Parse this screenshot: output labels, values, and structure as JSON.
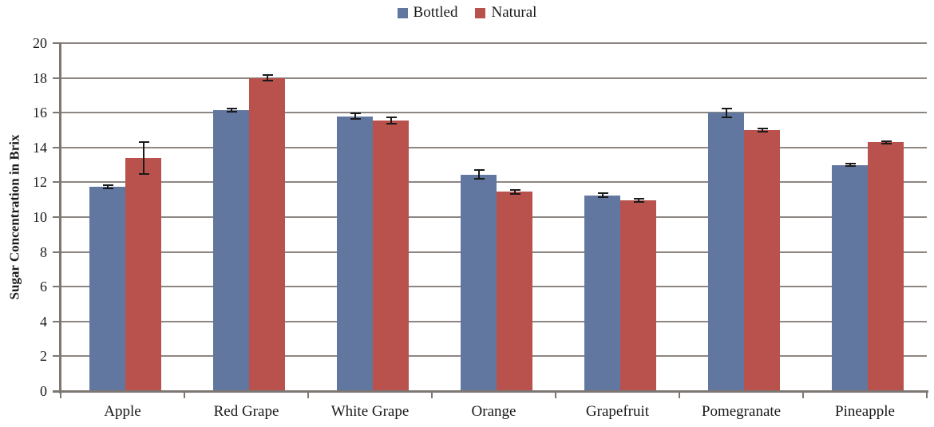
{
  "chart_data": {
    "type": "bar",
    "title": "",
    "categories": [
      "Apple",
      "Red Grape",
      "White Grape",
      "Orange",
      "Grapefruit",
      "Pomegranate",
      "Pineapple"
    ],
    "series": [
      {
        "name": "Bottled",
        "color": "#62779F",
        "values": [
          11.75,
          16.15,
          15.8,
          12.45,
          11.25,
          16.0,
          13.0
        ],
        "errors": [
          0.1,
          0.1,
          0.15,
          0.25,
          0.12,
          0.25,
          0.08
        ]
      },
      {
        "name": "Natural",
        "color": "#B9524D",
        "values": [
          13.4,
          18.0,
          15.55,
          11.45,
          10.95,
          15.0,
          14.3
        ],
        "errors": [
          0.9,
          0.15,
          0.2,
          0.12,
          0.1,
          0.1,
          0.08
        ]
      }
    ],
    "xlabel": "",
    "ylabel": "Sugar Concentration in Brix",
    "ylim": [
      0,
      20
    ],
    "ytick_step": 2,
    "yticks": [
      0,
      2,
      4,
      6,
      8,
      10,
      12,
      14,
      16,
      18,
      20
    ],
    "grid": true,
    "error_bars": true,
    "legend_position": "top-center"
  },
  "colors": {
    "gridline": "#8D8783",
    "axis": "#7D7772",
    "error_bar": "#1A1A1A",
    "text": "#1A1A1A",
    "background": "#FFFFFF"
  }
}
